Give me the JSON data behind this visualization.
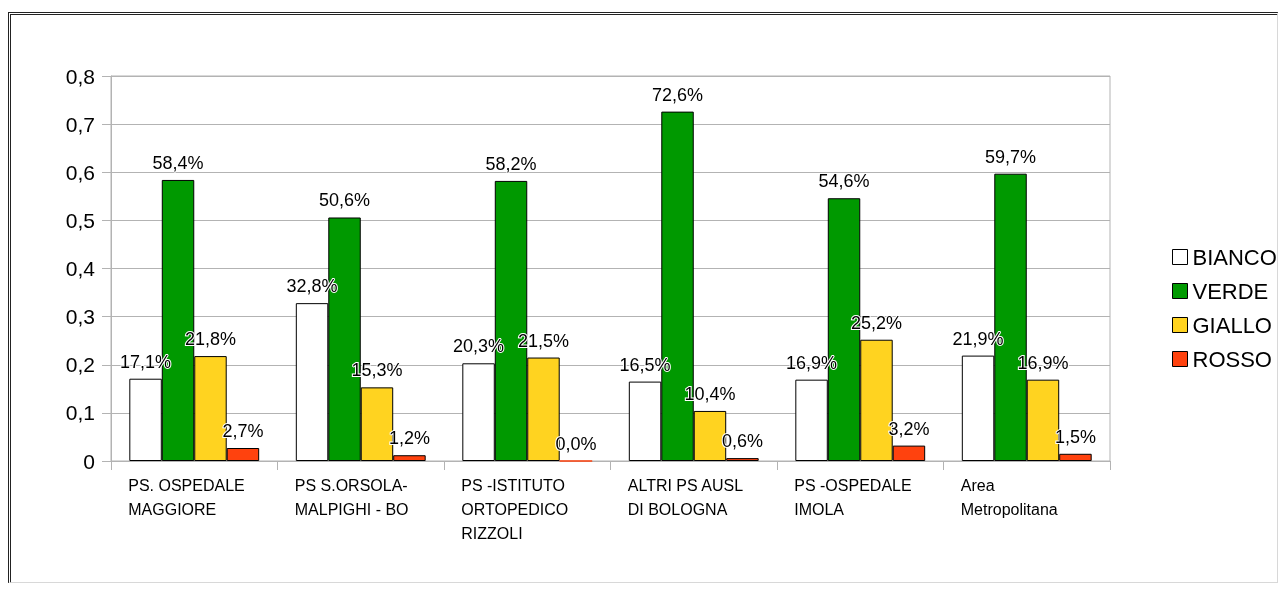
{
  "chart_data": {
    "type": "bar",
    "categories": [
      "PS. OSPEDALE MAGGIORE",
      "PS S.ORSOLA-MALPIGHI - BO",
      "PS -ISTITUTO ORTOPEDICO RIZZOLI",
      "ALTRI PS AUSL DI BOLOGNA",
      "PS -OSPEDALE IMOLA",
      "Area Metropolitana"
    ],
    "series": [
      {
        "name": "BIANCO",
        "color": "#ffffff",
        "values": [
          0.171,
          0.328,
          0.203,
          0.165,
          0.169,
          0.219
        ],
        "value_labels": [
          "17,1%",
          "32,8%",
          "20,3%",
          "16,5%",
          "16,9%",
          "21,9%"
        ]
      },
      {
        "name": "VERDE",
        "color": "#009900",
        "values": [
          0.584,
          0.506,
          0.582,
          0.726,
          0.546,
          0.597
        ],
        "value_labels": [
          "58,4%",
          "50,6%",
          "58,2%",
          "72,6%",
          "54,6%",
          "59,7%"
        ]
      },
      {
        "name": "GIALLO",
        "color": "#ffd320",
        "values": [
          0.218,
          0.153,
          0.215,
          0.104,
          0.252,
          0.169
        ],
        "value_labels": [
          "21,8%",
          "15,3%",
          "21,5%",
          "10,4%",
          "25,2%",
          "16,9%"
        ]
      },
      {
        "name": "ROSSO",
        "color": "#ff420e",
        "values": [
          0.027,
          0.012,
          0.0,
          0.006,
          0.032,
          0.015
        ],
        "value_labels": [
          "2,7%",
          "1,2%",
          "0,0%",
          "0,6%",
          "3,2%",
          "1,5%"
        ]
      }
    ],
    "ylim": [
      0,
      0.8
    ],
    "yticks": [
      0,
      {
        "value": 0.1,
        "label": "0,1"
      },
      {
        "value": 0.2,
        "label": "0,2"
      },
      {
        "value": 0.3,
        "label": "0,3"
      },
      {
        "value": 0.4,
        "label": "0,4"
      },
      {
        "value": 0.5,
        "label": "0,5"
      },
      {
        "value": 0.6,
        "label": "0,6"
      },
      {
        "value": 0.7,
        "label": "0,7"
      },
      {
        "value": 0.8,
        "label": "0,8"
      }
    ],
    "grid": "y",
    "legend": "right"
  }
}
